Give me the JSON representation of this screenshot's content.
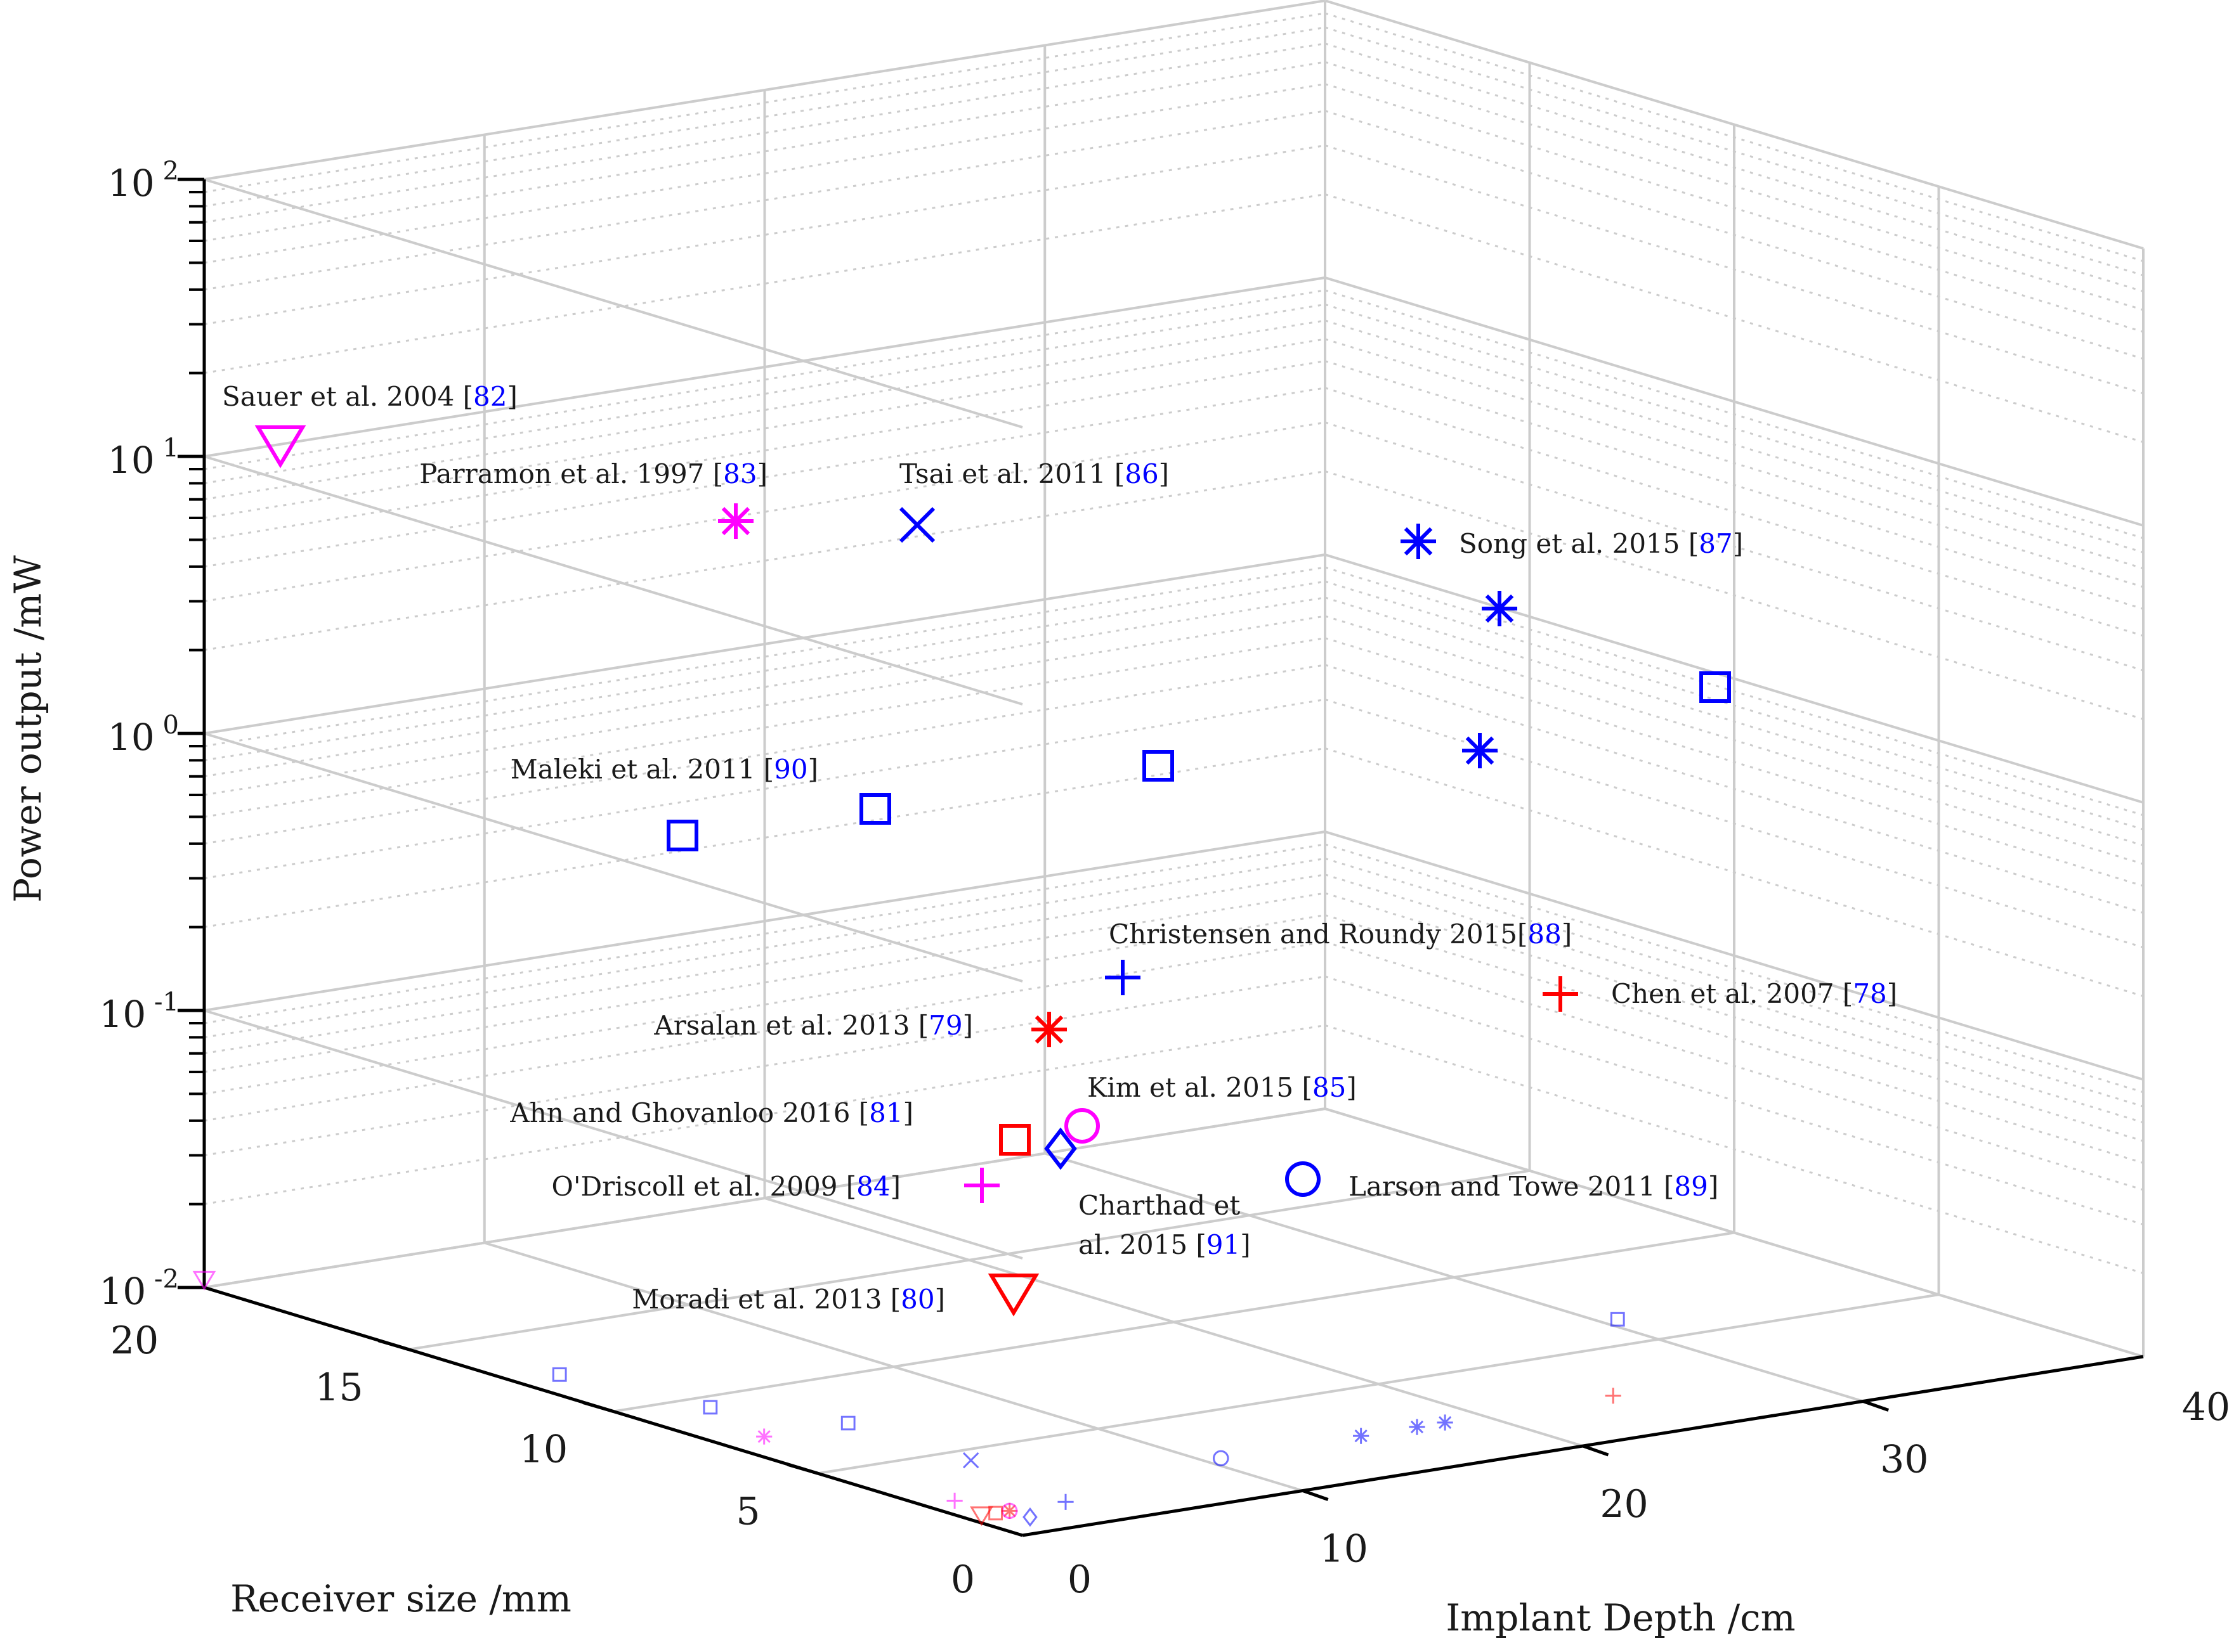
{
  "chart_data": {
    "type": "scatter",
    "dimensions": 3,
    "zlabel": "Power output /mW",
    "ylabel": "Receiver size /mm",
    "xlabel": "Implant Depth /cm",
    "z_scale": "log",
    "zlim": [
      0.01,
      100
    ],
    "z_ticks": [
      {
        "base": "10",
        "exp": "2"
      },
      {
        "base": "10",
        "exp": "1"
      },
      {
        "base": "10",
        "exp": "0"
      },
      {
        "base": "10",
        "exp": "-1"
      },
      {
        "base": "10",
        "exp": "-2"
      }
    ],
    "size_ticks": [
      "20",
      "15",
      "10",
      "5",
      "0"
    ],
    "depth_ticks": [
      "0",
      "10",
      "20",
      "30",
      "40"
    ],
    "colors": {
      "blue": "#0000ff",
      "magenta": "#ff00ff",
      "red": "#ff0000",
      "text": "#1a1a1a",
      "grid": "#cccccc",
      "axis": "#000000"
    },
    "points": [
      {
        "label": "Sauer et al. 2004 ",
        "ref": "82",
        "marker": "triangle-down",
        "color": "magenta",
        "depth": 0,
        "size": 20,
        "power": 11
      },
      {
        "label": "Parramon et al. 1997 ",
        "ref": "83",
        "marker": "asterisk",
        "color": "magenta",
        "depth": 1,
        "size": 7,
        "power": 5.5
      },
      {
        "label": "Tsai et al. 2011 ",
        "ref": "86",
        "marker": "x",
        "color": "blue",
        "depth": 4,
        "size": 4,
        "power": 5.5
      },
      {
        "label": "Song et al. 2015 ",
        "ref": "87",
        "marker": "asterisk",
        "color": "blue",
        "depth": 15,
        "size": 2,
        "power": 5
      },
      {
        "label": "",
        "ref": "",
        "marker": "asterisk",
        "color": "blue",
        "depth": 17,
        "size": 2,
        "power": 2.8
      },
      {
        "label": "",
        "ref": "",
        "marker": "asterisk",
        "color": "blue",
        "depth": 18,
        "size": 2,
        "power": 0.9
      },
      {
        "label": "",
        "ref": "",
        "marker": "square",
        "color": "blue",
        "depth": 30,
        "size": 6,
        "power": 1.5
      },
      {
        "label": "Maleki et al. 2011 ",
        "ref": "90",
        "marker": "square",
        "color": "blue",
        "depth": 1,
        "size": 12,
        "power": 0.4
      },
      {
        "label": "",
        "ref": "",
        "marker": "square",
        "color": "blue",
        "depth": 2,
        "size": 9,
        "power": 0.5
      },
      {
        "label": "",
        "ref": "",
        "marker": "square",
        "color": "blue",
        "depth": 4,
        "size": 7,
        "power": 0.75
      },
      {
        "label": "Christensen and Roundy 2015",
        "ref": "88",
        "marker": "plus",
        "color": "blue",
        "depth": 3,
        "size": 1,
        "power": 0.13
      },
      {
        "label": "Chen et al. 2007 ",
        "ref": "78",
        "marker": "plus",
        "color": "red",
        "depth": 24,
        "size": 2,
        "power": 0.1
      },
      {
        "label": "Arsalan et al. 2013 ",
        "ref": "79",
        "marker": "asterisk",
        "color": "red",
        "depth": 1,
        "size": 1,
        "power": 0.08
      },
      {
        "label": "Kim et al. 2015 ",
        "ref": "85",
        "marker": "circle",
        "color": "magenta",
        "depth": 1,
        "size": 1,
        "power": 0.04
      },
      {
        "label": "Ahn and Ghovanloo 2016 ",
        "ref": "81",
        "marker": "square",
        "color": "red",
        "depth": 0.5,
        "size": 1,
        "power": 0.035
      },
      {
        "label": "O'Driscoll et al. 2009 ",
        "ref": "84",
        "marker": "plus",
        "color": "magenta",
        "depth": 0.5,
        "size": 2,
        "power": 0.025
      },
      {
        "label": "Charthad et al. 2015 ",
        "ref": "91",
        "marker": "diamond",
        "color": "blue",
        "depth": 1,
        "size": 0.5,
        "power": 0.033
      },
      {
        "label": "Larson and Towe 2011 ",
        "ref": "89",
        "marker": "circle",
        "color": "blue",
        "depth": 10,
        "size": 2,
        "power": 0.025
      },
      {
        "label": "Moradi et al. 2013 ",
        "ref": "80",
        "marker": "triangle-down",
        "color": "red",
        "depth": 0,
        "size": 1,
        "power": 0.01
      }
    ]
  }
}
